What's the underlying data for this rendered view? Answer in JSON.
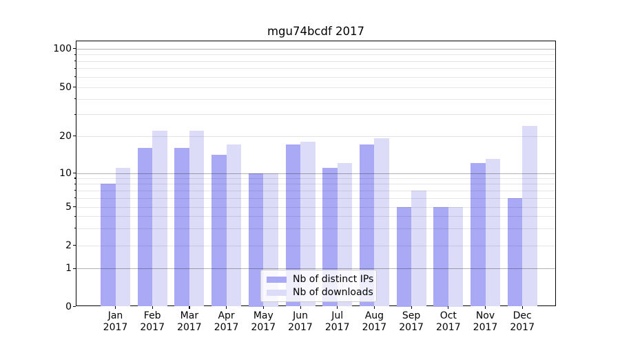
{
  "title": "mgu74bcdf 2017",
  "chart_data": {
    "type": "bar",
    "title": "mgu74bcdf 2017",
    "categories": [
      "Jan",
      "Feb",
      "Mar",
      "Apr",
      "May",
      "Jun",
      "Jul",
      "Aug",
      "Sep",
      "Oct",
      "Nov",
      "Dec"
    ],
    "category_year": "2017",
    "series": [
      {
        "name": "Nb of distinct IPs",
        "color": "#a9a9f5",
        "values": [
          8,
          16,
          16,
          14,
          10,
          17,
          11,
          17,
          5,
          5,
          12,
          6
        ]
      },
      {
        "name": "Nb of downloads",
        "color": "#dcdcf9",
        "values": [
          11,
          22,
          22,
          17,
          10,
          18,
          12,
          19,
          7,
          5,
          13,
          24
        ]
      }
    ],
    "xlabel": "",
    "ylabel": "",
    "y_axis": {
      "scale": "log-like",
      "ylim": [
        0,
        110
      ],
      "ticks": [
        0,
        1,
        2,
        5,
        10,
        20,
        50,
        100
      ],
      "major_gridlines": [
        1,
        10,
        100
      ],
      "minor_gridlines": [
        2,
        3,
        4,
        5,
        6,
        7,
        8,
        9,
        20,
        30,
        40,
        50,
        60,
        70,
        80,
        90
      ]
    },
    "grid": "on",
    "legend": {
      "position": "lower center"
    }
  }
}
